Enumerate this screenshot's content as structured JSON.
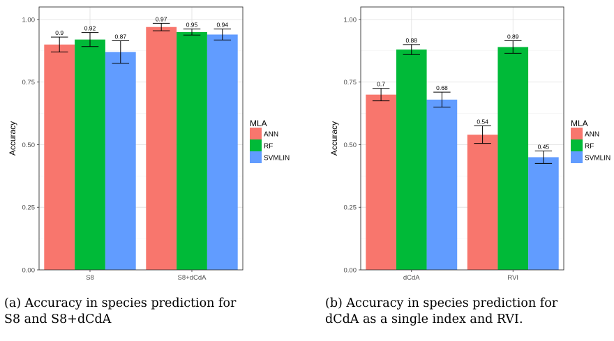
{
  "captions": {
    "a_line1": "(a) Accuracy in species prediction for",
    "a_line2": "S8 and S8+dCdA",
    "b_line1": "(b) Accuracy in species prediction for",
    "b_line2": "dCdA as a single index and RVI."
  },
  "colors": {
    "ANN": "#f8766d",
    "RF": "#00ba38",
    "SVMLIN": "#619cff"
  },
  "chart_data": [
    {
      "type": "bar",
      "ylabel": "Accuracy",
      "xlabel": "",
      "ylim": [
        0,
        1.05
      ],
      "yticks": [
        "0.00",
        "0.25",
        "0.50",
        "0.75",
        "1.00"
      ],
      "grid": true,
      "legend": {
        "title": "MLA",
        "placement": "right",
        "entries": [
          "ANN",
          "RF",
          "SVMLIN"
        ]
      },
      "categories": [
        "S8",
        "S8+dCdA"
      ],
      "series": [
        {
          "name": "ANN",
          "values": [
            0.9,
            0.97
          ],
          "labels": [
            "0.9",
            "0.97"
          ],
          "err": [
            0.03,
            0.015
          ]
        },
        {
          "name": "RF",
          "values": [
            0.92,
            0.95
          ],
          "labels": [
            "0.92",
            "0.95"
          ],
          "err": [
            0.028,
            0.012
          ]
        },
        {
          "name": "SVMLIN",
          "values": [
            0.87,
            0.94
          ],
          "labels": [
            "0.87",
            "0.94"
          ],
          "err": [
            0.045,
            0.022
          ]
        }
      ]
    },
    {
      "type": "bar",
      "ylabel": "Accuracy",
      "xlabel": "",
      "ylim": [
        0,
        1.05
      ],
      "yticks": [
        "0.00",
        "0.25",
        "0.50",
        "0.75",
        "1.00"
      ],
      "grid": true,
      "legend": {
        "title": "MLA",
        "placement": "right",
        "entries": [
          "ANN",
          "RF",
          "SVMLIN"
        ]
      },
      "categories": [
        "dCdA",
        "RVI"
      ],
      "series": [
        {
          "name": "ANN",
          "values": [
            0.7,
            0.54
          ],
          "labels": [
            "0.7",
            "0.54"
          ],
          "err": [
            0.025,
            0.035
          ]
        },
        {
          "name": "RF",
          "values": [
            0.88,
            0.89
          ],
          "labels": [
            "0.88",
            "0.89"
          ],
          "err": [
            0.02,
            0.025
          ]
        },
        {
          "name": "SVMLIN",
          "values": [
            0.68,
            0.45
          ],
          "labels": [
            "0.68",
            "0.45"
          ],
          "err": [
            0.03,
            0.025
          ]
        }
      ]
    }
  ]
}
